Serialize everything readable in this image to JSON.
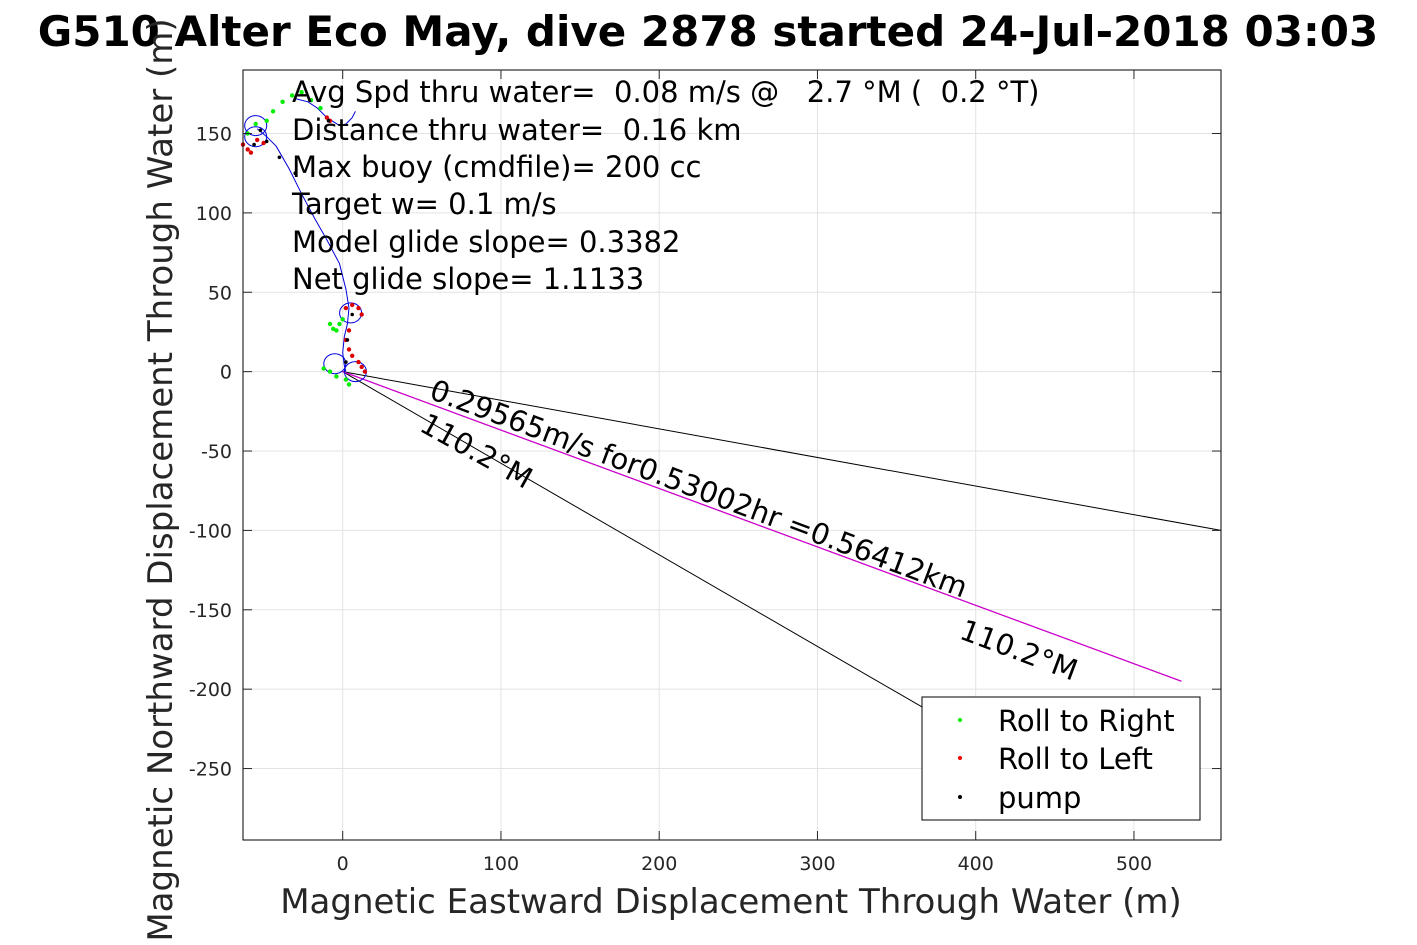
{
  "chart_data": {
    "type": "scatter",
    "title": "G510 Alter Eco May, dive 2878 started 24-Jul-2018 03:03",
    "xlabel": "Magnetic Eastward Displacement Through Water (m)",
    "ylabel": "Magnetic Northward Displacement Through Water (m)",
    "xlim": [
      -63,
      555
    ],
    "ylim": [
      -295,
      190
    ],
    "grid": true,
    "x_ticks": [
      0,
      100,
      200,
      300,
      400,
      500
    ],
    "y_ticks": [
      150,
      100,
      50,
      0,
      -50,
      -100,
      -150,
      -200,
      -250
    ],
    "annotations": [
      "Avg Spd thru water=  0.08 m/s @   2.7 °M (  0.2 °T)",
      "Distance thru water=  0.16 km",
      "Max buoy (cmdfile)= 200 cc",
      "Target w= 0.1 m/s",
      "Model glide slope= 0.3382",
      "Net glide slope= 1.1133"
    ],
    "vector_label": "0.29565m/s for0.53002hr =0.56412km",
    "heading_label_upper": "110.2°M",
    "heading_label_lower": "110.2°M",
    "legend": {
      "position": "bottom-right",
      "entries": [
        {
          "label": "Roll to Right",
          "color": "#00ee00"
        },
        {
          "label": "Roll to Left",
          "color": "#ff0000"
        },
        {
          "label": "pump",
          "color": "#000000"
        }
      ]
    },
    "series": [
      {
        "kind": "track",
        "color": "#0000dd",
        "points": [
          [
            -54,
            153
          ],
          [
            -48,
            148
          ],
          [
            -42,
            142
          ],
          [
            -34,
            128
          ],
          [
            -26,
            112
          ],
          [
            -18,
            97
          ],
          [
            -10,
            83
          ],
          [
            -2,
            68
          ],
          [
            2,
            52
          ],
          [
            4,
            40
          ],
          [
            3,
            30
          ],
          [
            1,
            22
          ],
          [
            0,
            12
          ],
          [
            1,
            4
          ],
          [
            2,
            0
          ]
        ]
      },
      {
        "kind": "track",
        "color": "#0000dd",
        "points": [
          [
            -30,
            172
          ],
          [
            -22,
            170
          ],
          [
            -16,
            166
          ],
          [
            -10,
            160
          ],
          [
            -2,
            155
          ],
          [
            2,
            156
          ],
          [
            6,
            160
          ],
          [
            8,
            164
          ]
        ]
      },
      {
        "kind": "roll_right",
        "color": "#00ee00",
        "points": [
          [
            -60,
            150
          ],
          [
            -55,
            156
          ],
          [
            -48,
            158
          ],
          [
            -44,
            164
          ],
          [
            -38,
            170
          ],
          [
            -32,
            174
          ],
          [
            -26,
            176
          ],
          [
            -20,
            171
          ],
          [
            -14,
            166
          ],
          [
            -8,
            30
          ],
          [
            -6,
            27
          ],
          [
            -4,
            26
          ],
          [
            -2,
            30
          ],
          [
            0,
            33
          ],
          [
            -12,
            2
          ],
          [
            -8,
            0
          ],
          [
            -4,
            -3
          ],
          [
            2,
            -5
          ],
          [
            4,
            -8
          ]
        ]
      },
      {
        "kind": "roll_left",
        "color": "#dd0000",
        "points": [
          [
            -63,
            143
          ],
          [
            -60,
            140
          ],
          [
            -58,
            138
          ],
          [
            -54,
            146
          ],
          [
            -50,
            144
          ],
          [
            -10,
            160
          ],
          [
            -8,
            158
          ],
          [
            2,
            40
          ],
          [
            6,
            42
          ],
          [
            10,
            40
          ],
          [
            12,
            36
          ],
          [
            4,
            26
          ],
          [
            2,
            20
          ],
          [
            4,
            14
          ],
          [
            6,
            10
          ],
          [
            10,
            6
          ],
          [
            12,
            3
          ],
          [
            14,
            0
          ]
        ]
      },
      {
        "kind": "pump",
        "color": "#000000",
        "points": [
          [
            -56,
            143
          ],
          [
            -52,
            152
          ],
          [
            -48,
            145
          ],
          [
            -40,
            135
          ],
          [
            -30,
            125
          ],
          [
            -9,
            158
          ],
          [
            6,
            36
          ],
          [
            3,
            20
          ],
          [
            2,
            6
          ]
        ]
      }
    ],
    "circles": [
      [
        -55,
        155
      ],
      [
        -55,
        148
      ],
      [
        5,
        37
      ],
      [
        -5,
        5
      ],
      [
        8,
        0
      ]
    ],
    "vector": {
      "from": [
        0,
        0
      ],
      "to": [
        530,
        -195
      ],
      "color": "#cc00cc"
    },
    "wedge": {
      "from": [
        0,
        0
      ],
      "upper_to": [
        555,
        -100
      ],
      "lower_to": [
        390,
        -225
      ]
    }
  }
}
